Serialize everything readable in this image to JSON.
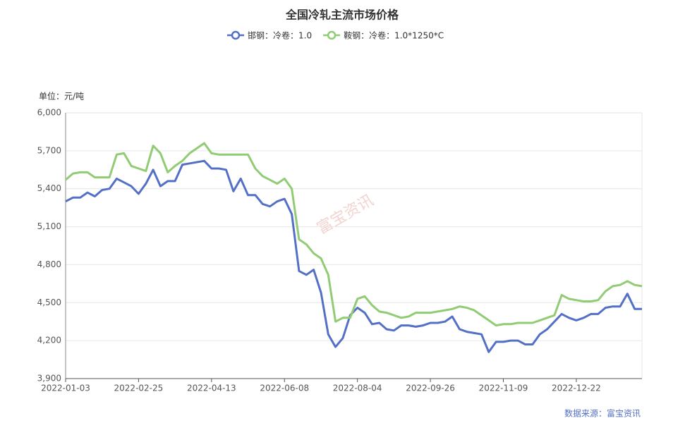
{
  "chart_data": {
    "type": "line",
    "title": "全国冷轧主流市场价格",
    "unit_label": "单位：元/吨",
    "source": "数据来源：富宝资讯",
    "watermark": "富宝资讯",
    "categories": [
      "2022-01-03",
      null,
      null,
      null,
      null,
      null,
      null,
      null,
      null,
      null,
      "2022-02-25",
      null,
      null,
      null,
      null,
      null,
      null,
      null,
      null,
      null,
      "2022-04-13",
      null,
      null,
      null,
      null,
      null,
      null,
      null,
      null,
      null,
      "2022-06-08",
      null,
      null,
      null,
      null,
      null,
      null,
      null,
      null,
      null,
      "2022-08-04",
      null,
      null,
      null,
      null,
      null,
      null,
      null,
      null,
      null,
      "2022-09-26",
      null,
      null,
      null,
      null,
      null,
      null,
      null,
      null,
      null,
      "2022-11-09",
      null,
      null,
      null,
      null,
      null,
      null,
      null,
      null,
      null,
      "2022-12-22",
      null,
      null,
      null,
      null,
      null,
      null,
      null,
      null,
      null
    ],
    "series": [
      {
        "name": "邯钢：冷卷：1.0",
        "color": "#5470c6",
        "values": [
          5300,
          5330,
          5330,
          5370,
          5340,
          5390,
          5400,
          5480,
          5450,
          5420,
          5360,
          5440,
          5550,
          5420,
          5460,
          5460,
          5590,
          5600,
          5610,
          5620,
          5560,
          5560,
          5550,
          5380,
          5480,
          5350,
          5350,
          5280,
          5260,
          5300,
          5320,
          5200,
          4750,
          4720,
          4760,
          4580,
          4250,
          4150,
          4220,
          4400,
          4460,
          4420,
          4330,
          4340,
          4290,
          4280,
          4320,
          4320,
          4310,
          4320,
          4340,
          4340,
          4350,
          4390,
          4290,
          4270,
          4260,
          4250,
          4110,
          4190,
          4190,
          4200,
          4200,
          4170,
          4170,
          4250,
          4290,
          4350,
          4410,
          4380,
          4360,
          4380,
          4410,
          4410,
          4460,
          4470,
          4470,
          4570,
          4450,
          4450
        ]
      },
      {
        "name": "鞍钢：冷卷：1.0*1250*C",
        "color": "#91cc75",
        "values": [
          5470,
          5520,
          5530,
          5530,
          5490,
          5490,
          5490,
          5670,
          5680,
          5580,
          5560,
          5540,
          5740,
          5680,
          5530,
          5580,
          5620,
          5680,
          5720,
          5760,
          5680,
          5670,
          5670,
          5670,
          5670,
          5670,
          5560,
          5500,
          5470,
          5440,
          5480,
          5400,
          5000,
          4960,
          4890,
          4850,
          4720,
          4350,
          4380,
          4380,
          4530,
          4550,
          4480,
          4430,
          4420,
          4400,
          4380,
          4390,
          4420,
          4420,
          4420,
          4430,
          4440,
          4450,
          4470,
          4460,
          4440,
          4400,
          4360,
          4320,
          4330,
          4330,
          4340,
          4340,
          4340,
          4360,
          4380,
          4400,
          4560,
          4530,
          4520,
          4510,
          4510,
          4520,
          4590,
          4630,
          4640,
          4670,
          4640,
          4630
        ]
      }
    ],
    "ylim": [
      3900,
      6000
    ],
    "yticks": [
      {
        "value": 3900,
        "label": "3,900"
      },
      {
        "value": 4200,
        "label": "4,200"
      },
      {
        "value": 4500,
        "label": "4,500"
      },
      {
        "value": 4800,
        "label": "4,800"
      },
      {
        "value": 5100,
        "label": "5,100"
      },
      {
        "value": 5400,
        "label": "5,400"
      },
      {
        "value": 5700,
        "label": "5,700"
      },
      {
        "value": 6000,
        "label": "6,000"
      }
    ],
    "grid": true
  }
}
